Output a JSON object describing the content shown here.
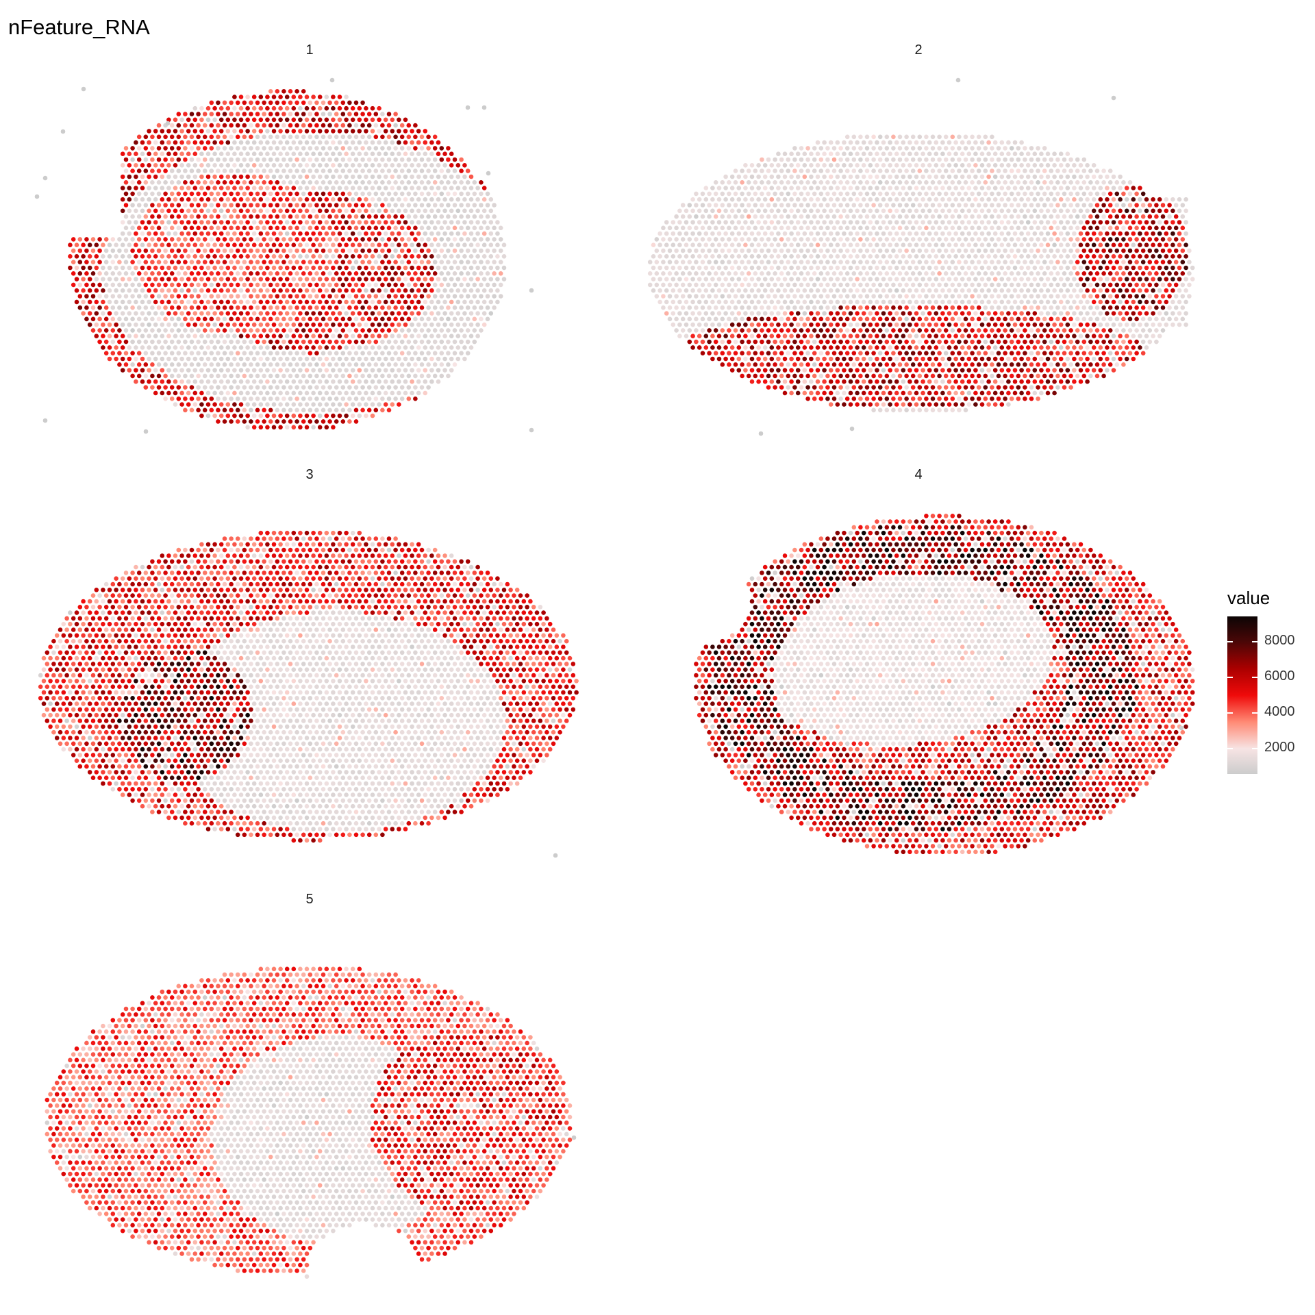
{
  "chart_data": {
    "type": "scatter",
    "title": "nFeature_RNA",
    "facets": [
      "1",
      "2",
      "3",
      "4",
      "5"
    ],
    "legend": {
      "title": "value",
      "position": "right",
      "ticks": [
        2000,
        4000,
        6000,
        8000
      ],
      "range": [
        0,
        8800
      ],
      "colors": [
        "#cccccc",
        "#f7e4e4",
        "#ff8a75",
        "#ef0a0a",
        "#aa0000",
        "#4a0707",
        "#0c0505"
      ]
    },
    "grid": false,
    "series": [
      {
        "name": "1",
        "description_free": true,
        "regions": [
          {
            "shape": "ellipse",
            "cx": 0.52,
            "cy": 0.52,
            "rx": 0.44,
            "ry": 0.44,
            "value": 5200
          },
          {
            "shape": "arc-band",
            "cx": 0.55,
            "cy": 0.55,
            "rx": 0.32,
            "ry": 0.3,
            "width": 0.08,
            "value": 600
          },
          {
            "shape": "ellipse",
            "cx": 0.4,
            "cy": 0.5,
            "rx": 0.2,
            "ry": 0.22,
            "value": 4200
          }
        ]
      },
      {
        "name": "2",
        "regions": [
          {
            "shape": "ellipse",
            "cx": 0.5,
            "cy": 0.52,
            "rx": 0.46,
            "ry": 0.36,
            "value": 900
          },
          {
            "shape": "band-bottom",
            "cx": 0.48,
            "cy": 0.78,
            "rx": 0.42,
            "ry": 0.14,
            "value": 5400
          },
          {
            "shape": "ellipse",
            "cx": 0.87,
            "cy": 0.5,
            "rx": 0.1,
            "ry": 0.18,
            "value": 6000
          }
        ]
      },
      {
        "name": "3",
        "regions": [
          {
            "shape": "ellipse",
            "cx": 0.5,
            "cy": 0.5,
            "rx": 0.47,
            "ry": 0.42,
            "value": 4800
          },
          {
            "shape": "ellipse",
            "cx": 0.55,
            "cy": 0.62,
            "rx": 0.3,
            "ry": 0.3,
            "value": 900
          },
          {
            "shape": "ellipse",
            "cx": 0.28,
            "cy": 0.6,
            "rx": 0.12,
            "ry": 0.18,
            "value": 6800
          }
        ]
      },
      {
        "name": "4",
        "regions": [
          {
            "shape": "ellipse",
            "cx": 0.52,
            "cy": 0.5,
            "rx": 0.46,
            "ry": 0.46,
            "value": 5000
          },
          {
            "shape": "ellipse",
            "cx": 0.45,
            "cy": 0.42,
            "rx": 0.28,
            "ry": 0.26,
            "value": 1100
          },
          {
            "shape": "arc-band",
            "cx": 0.5,
            "cy": 0.5,
            "rx": 0.32,
            "ry": 0.35,
            "width": 0.06,
            "value": 7200
          }
        ]
      },
      {
        "name": "5",
        "regions": [
          {
            "shape": "ellipse",
            "cx": 0.5,
            "cy": 0.52,
            "rx": 0.47,
            "ry": 0.42,
            "value": 3800
          },
          {
            "shape": "ellipse",
            "cx": 0.55,
            "cy": 0.6,
            "rx": 0.22,
            "ry": 0.28,
            "value": 800
          },
          {
            "shape": "ellipse",
            "cx": 0.78,
            "cy": 0.55,
            "rx": 0.17,
            "ry": 0.25,
            "value": 4600
          }
        ]
      }
    ]
  }
}
